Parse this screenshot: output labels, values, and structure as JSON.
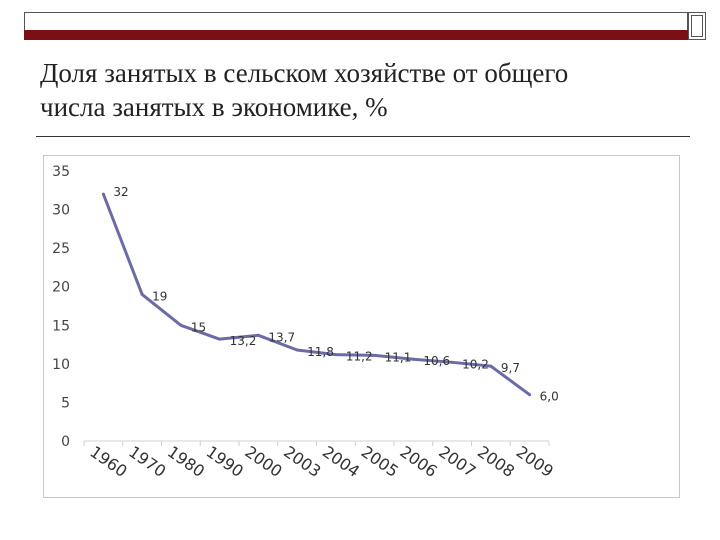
{
  "slide": {
    "title_line1": "Доля занятых в сельском хозяйстве от общего",
    "title_line2": "числа занятых в экономике, %"
  },
  "chart_data": {
    "type": "line",
    "categories": [
      "1960",
      "1970",
      "1980",
      "1990",
      "2000",
      "2003",
      "2004",
      "2005",
      "2006",
      "2007",
      "2008",
      "2009"
    ],
    "series": [
      {
        "values": [
          32,
          19,
          15,
          13.2,
          13.7,
          11.8,
          11.2,
          11.1,
          10.6,
          10.2,
          9.7,
          6.0
        ]
      }
    ],
    "data_labels": [
      "32",
      "19",
      "15",
      "13,2",
      "13,7",
      "11,8",
      "11,2",
      "11,1",
      "10,6",
      "10,2",
      "9,7",
      "6,0"
    ],
    "yticks": [
      0,
      5,
      10,
      15,
      20,
      25,
      30,
      35
    ],
    "ylim": [
      0,
      35
    ],
    "grid": false,
    "legend": "none",
    "line_color": "#6b6ba5",
    "title": "",
    "xlabel": "",
    "ylabel": ""
  }
}
